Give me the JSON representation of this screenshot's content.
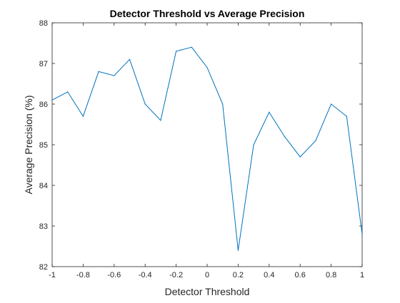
{
  "chart_data": {
    "type": "line",
    "title": "Detector Threshold vs Average Precision",
    "xlabel": "Detector Threshold",
    "ylabel": "Average Precision (%)",
    "xlim": [
      -1,
      1
    ],
    "ylim": [
      82,
      88
    ],
    "xticks": [
      -1,
      -0.8,
      -0.6,
      -0.4,
      -0.2,
      0,
      0.2,
      0.4,
      0.6,
      0.8,
      1
    ],
    "xtick_labels": [
      "-1",
      "-0.8",
      "-0.6",
      "-0.4",
      "-0.2",
      "0",
      "0.2",
      "0.4",
      "0.6",
      "0.8",
      "1"
    ],
    "yticks": [
      82,
      83,
      84,
      85,
      86,
      87,
      88
    ],
    "ytick_labels": [
      "82",
      "83",
      "84",
      "85",
      "86",
      "87",
      "88"
    ],
    "grid": false,
    "box": true,
    "series": [
      {
        "color": "#0072BD",
        "x": [
          -1,
          -0.9,
          -0.8,
          -0.7,
          -0.6,
          -0.5,
          -0.4,
          -0.3,
          -0.2,
          -0.1,
          0,
          0.1,
          0.2,
          0.3,
          0.4,
          0.5,
          0.6,
          0.7,
          0.8,
          0.9,
          1
        ],
        "y": [
          86.1,
          86.3,
          85.7,
          86.8,
          86.7,
          87.1,
          86.0,
          85.6,
          87.3,
          87.4,
          86.9,
          86.0,
          82.4,
          85.0,
          85.8,
          85.2,
          84.7,
          85.1,
          86.0,
          85.7,
          82.8
        ]
      }
    ]
  }
}
